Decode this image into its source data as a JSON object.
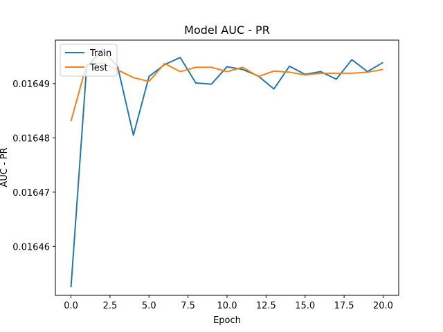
{
  "chart_data": {
    "type": "line",
    "title": "Model AUC - PR",
    "xlabel": "Epoch",
    "ylabel": "AUC - PR",
    "xlim": [
      -1.0,
      21.0
    ],
    "ylim": [
      0.016451,
      0.016498
    ],
    "xticks": [
      0,
      2.5,
      5,
      7.5,
      10,
      12.5,
      15,
      17.5,
      20
    ],
    "xtick_labels": [
      "0.0",
      "2.5",
      "5.0",
      "7.5",
      "10.0",
      "12.5",
      "15.0",
      "17.5",
      "20.0"
    ],
    "yticks": [
      0.01646,
      0.01647,
      0.01648,
      0.01649
    ],
    "ytick_labels": [
      "0.01646",
      "0.01647",
      "0.01648",
      "0.01649"
    ],
    "grid": false,
    "legend_position": "top-left",
    "x": [
      0,
      1,
      2,
      3,
      4,
      5,
      6,
      7,
      8,
      9,
      10,
      11,
      12,
      13,
      14,
      15,
      16,
      17,
      18,
      19,
      20
    ],
    "series": [
      {
        "name": "Train",
        "color": "#1f77b4",
        "values": [
          0.0164525,
          0.016493,
          0.0164963,
          0.016493,
          0.0164805,
          0.0164913,
          0.0164935,
          0.0164948,
          0.0164901,
          0.0164899,
          0.0164931,
          0.0164926,
          0.0164914,
          0.016489,
          0.0164932,
          0.0164917,
          0.0164922,
          0.0164908,
          0.0164944,
          0.0164922,
          0.0164939
        ]
      },
      {
        "name": "Test",
        "color": "#ff7f0e",
        "values": [
          0.0164831,
          0.0164935,
          0.0164938,
          0.0164925,
          0.0164911,
          0.0164904,
          0.0164937,
          0.0164922,
          0.016493,
          0.016493,
          0.0164922,
          0.016493,
          0.0164913,
          0.0164923,
          0.0164921,
          0.0164916,
          0.0164919,
          0.0164919,
          0.0164919,
          0.0164921,
          0.0164926
        ]
      }
    ]
  }
}
